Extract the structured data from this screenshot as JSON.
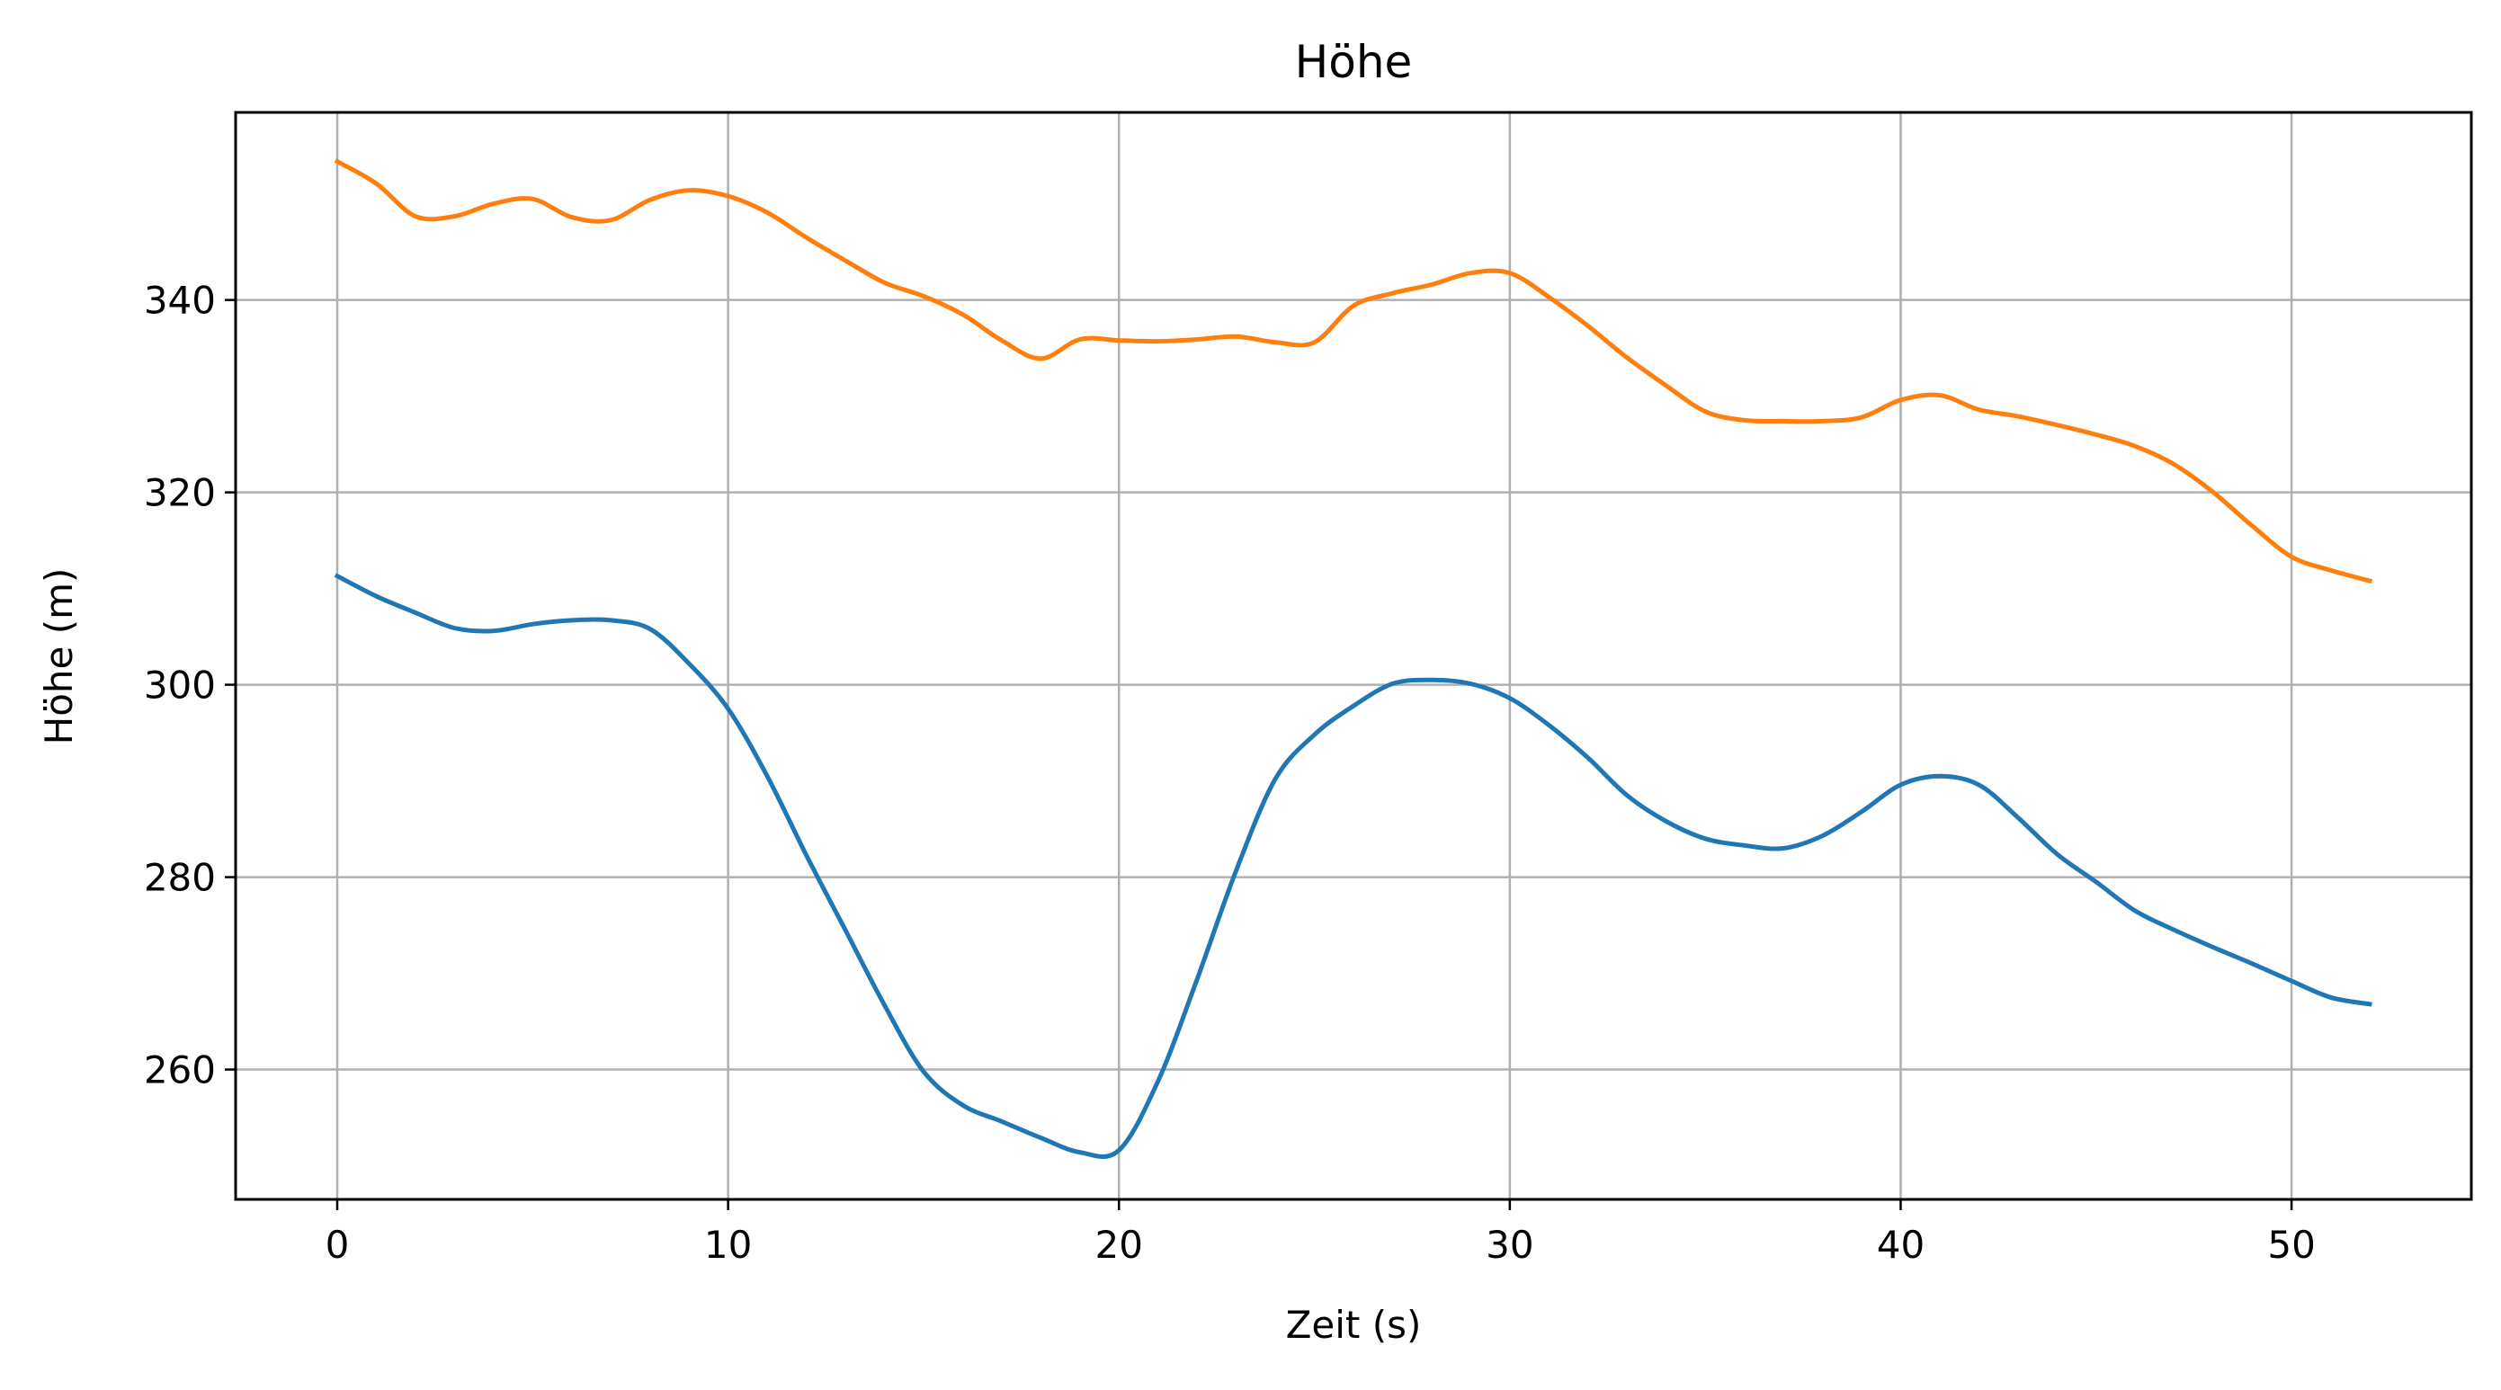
{
  "chart_data": {
    "type": "line",
    "title": "Höhe",
    "xlabel": "Zeit (s)",
    "ylabel": "Höhe (m)",
    "xlim": [
      -2.6,
      54.6
    ],
    "ylim": [
      246.5,
      359.5
    ],
    "xticks": [
      0,
      10,
      20,
      30,
      40,
      50
    ],
    "yticks": [
      260,
      280,
      300,
      320,
      340
    ],
    "grid": true,
    "series": [
      {
        "color": "#1f77b4",
        "x": [
          0,
          1,
          2,
          3,
          4,
          5,
          6,
          7,
          8,
          9,
          10,
          11,
          12,
          13,
          14,
          15,
          16,
          17,
          18,
          19,
          20,
          21,
          22,
          23,
          24,
          25,
          26,
          27,
          28,
          29,
          30,
          31,
          32,
          33,
          34,
          35,
          36,
          37,
          38,
          39,
          40,
          41,
          42,
          43,
          44,
          45,
          46,
          47,
          48,
          49,
          50,
          51,
          52
        ],
        "values": [
          311.3,
          309.2,
          307.5,
          305.9,
          305.6,
          306.3,
          306.7,
          306.7,
          305.8,
          302.2,
          297.5,
          290.5,
          282.3,
          274.5,
          266.7,
          259.8,
          256.3,
          254.6,
          252.9,
          251.4,
          251.6,
          258.8,
          269.4,
          280.7,
          290.2,
          294.8,
          297.8,
          300.1,
          300.5,
          300.1,
          298.6,
          295.8,
          292.4,
          288.5,
          285.8,
          284.0,
          283.3,
          283.0,
          284.3,
          286.8,
          289.6,
          290.5,
          289.6,
          286.2,
          282.4,
          279.5,
          276.5,
          274.5,
          272.7,
          271.0,
          269.2,
          267.5,
          266.8
        ]
      },
      {
        "color": "#ff7f0e",
        "x": [
          0,
          1,
          2,
          3,
          4,
          5,
          6,
          7,
          8,
          9,
          10,
          11,
          12,
          13,
          14,
          15,
          16,
          17,
          18,
          19,
          20,
          21,
          22,
          23,
          24,
          25,
          26,
          27,
          28,
          29,
          30,
          31,
          32,
          33,
          34,
          35,
          36,
          37,
          38,
          39,
          40,
          41,
          42,
          43,
          44,
          45,
          46,
          47,
          48,
          49,
          50,
          51,
          52
        ],
        "values": [
          354.4,
          352.1,
          348.7,
          348.7,
          350.0,
          350.5,
          348.6,
          348.3,
          350.4,
          351.4,
          350.8,
          349.1,
          346.5,
          344.1,
          341.8,
          340.4,
          338.5,
          335.8,
          333.9,
          335.9,
          335.8,
          335.7,
          335.9,
          336.2,
          335.6,
          335.6,
          339.4,
          340.7,
          341.6,
          342.8,
          342.8,
          340.3,
          337.3,
          334.0,
          331.1,
          328.4,
          327.5,
          327.4,
          327.4,
          327.8,
          329.6,
          330.1,
          328.6,
          327.9,
          327.0,
          326.0,
          324.8,
          322.9,
          320.0,
          316.5,
          313.3,
          311.9,
          310.8
        ]
      }
    ]
  }
}
